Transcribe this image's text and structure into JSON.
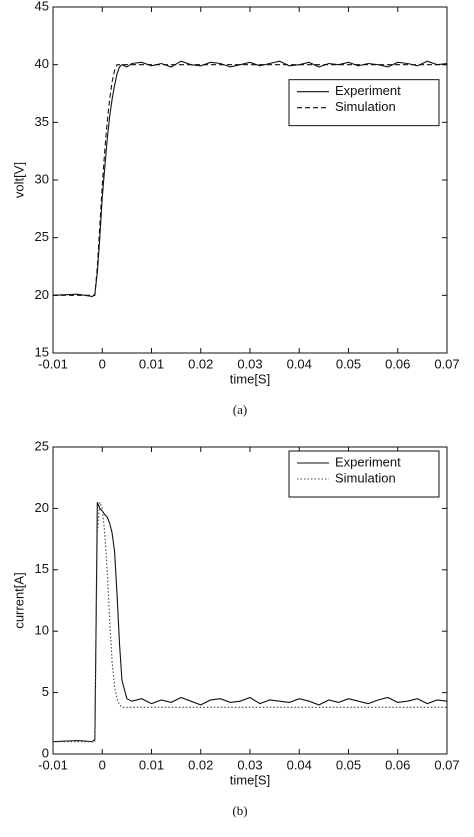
{
  "chart_data": [
    {
      "type": "line",
      "caption": "(a)",
      "xlabel": "time[S]",
      "ylabel": "volt[V]",
      "x": [
        -0.01,
        -0.005,
        -0.002,
        -0.0015,
        -0.001,
        -0.0005,
        0,
        0.0005,
        0.001,
        0.0015,
        0.002,
        0.0025,
        0.003,
        0.0035,
        0.004,
        0.005,
        0.006,
        0.008,
        0.01,
        0.012,
        0.014,
        0.016,
        0.018,
        0.02,
        0.022,
        0.024,
        0.026,
        0.028,
        0.03,
        0.032,
        0.034,
        0.036,
        0.038,
        0.04,
        0.042,
        0.044,
        0.046,
        0.048,
        0.05,
        0.052,
        0.054,
        0.056,
        0.058,
        0.06,
        0.062,
        0.064,
        0.066,
        0.068,
        0.07
      ],
      "xlim": [
        -0.01,
        0.07
      ],
      "xticks": [
        -0.01,
        0,
        0.01,
        0.02,
        0.03,
        0.04,
        0.05,
        0.06,
        0.07
      ],
      "ylim": [
        15,
        45
      ],
      "yticks": [
        15,
        20,
        25,
        30,
        35,
        40,
        45
      ],
      "legend": "right",
      "series": [
        {
          "name": "Experiment",
          "color": "#111111",
          "dash": "solid",
          "values": [
            20,
            20.1,
            19.9,
            20.1,
            22,
            25,
            28.5,
            31,
            33.5,
            35.5,
            37,
            38.2,
            39.2,
            39.8,
            40,
            39.8,
            40.1,
            40.2,
            39.9,
            40.1,
            39.8,
            40.3,
            40,
            39.9,
            40.2,
            40.1,
            39.8,
            40,
            40.2,
            39.9,
            40.1,
            40.3,
            39.9,
            40,
            40.2,
            39.8,
            40.1,
            40,
            40.2,
            39.9,
            40.1,
            40,
            39.8,
            40.2,
            40.1,
            39.9,
            40.3,
            40,
            40.1
          ]
        },
        {
          "name": "Simulation",
          "color": "#111111",
          "dash": "dashed",
          "values": [
            20,
            20,
            20,
            20,
            22.5,
            26,
            29.5,
            32.5,
            35,
            37,
            38.5,
            39.5,
            40,
            40,
            40,
            40,
            40,
            40,
            40,
            40,
            40,
            40,
            40,
            40,
            40,
            40,
            40,
            40,
            40,
            40,
            40,
            40,
            40,
            40,
            40,
            40,
            40,
            40,
            40,
            40,
            40,
            40,
            40,
            40,
            40,
            40,
            40,
            40,
            40
          ]
        }
      ]
    },
    {
      "type": "line",
      "caption": "(b)",
      "xlabel": "time[S]",
      "ylabel": "current[A]",
      "x": [
        -0.01,
        -0.005,
        -0.002,
        -0.0015,
        -0.001,
        -0.0005,
        0,
        0.0005,
        0.001,
        0.0015,
        0.002,
        0.0025,
        0.003,
        0.0035,
        0.004,
        0.005,
        0.006,
        0.008,
        0.01,
        0.012,
        0.014,
        0.016,
        0.018,
        0.02,
        0.022,
        0.024,
        0.026,
        0.028,
        0.03,
        0.032,
        0.034,
        0.036,
        0.038,
        0.04,
        0.042,
        0.044,
        0.046,
        0.048,
        0.05,
        0.052,
        0.054,
        0.056,
        0.058,
        0.06,
        0.062,
        0.064,
        0.066,
        0.068,
        0.07
      ],
      "xlim": [
        -0.01,
        0.07
      ],
      "xticks": [
        -0.01,
        0,
        0.01,
        0.02,
        0.03,
        0.04,
        0.05,
        0.06,
        0.07
      ],
      "ylim": [
        0,
        25
      ],
      "yticks": [
        0,
        5,
        10,
        15,
        20,
        25
      ],
      "legend": "upper right",
      "series": [
        {
          "name": "Experiment",
          "color": "#111111",
          "dash": "solid",
          "values": [
            1,
            1.1,
            1,
            1.2,
            20.5,
            20,
            19.8,
            19.5,
            19.3,
            18.8,
            18,
            16.5,
            13,
            9,
            6,
            4.5,
            4.3,
            4.5,
            4.1,
            4.4,
            4.2,
            4.6,
            4.3,
            4.0,
            4.4,
            4.5,
            4.2,
            4.3,
            4.6,
            4.1,
            4.4,
            4.3,
            4.2,
            4.5,
            4.3,
            4.0,
            4.4,
            4.2,
            4.5,
            4.3,
            4.1,
            4.4,
            4.6,
            4.2,
            4.3,
            4.5,
            4.1,
            4.4,
            4.3
          ]
        },
        {
          "name": "Simulation",
          "color": "#444444",
          "dash": "dotted",
          "values": [
            1,
            1,
            1,
            1,
            18,
            20.5,
            20,
            18,
            15,
            11,
            7.5,
            5.5,
            4.5,
            4,
            3.8,
            3.8,
            3.8,
            3.8,
            3.8,
            3.8,
            3.8,
            3.8,
            3.8,
            3.8,
            3.8,
            3.8,
            3.8,
            3.8,
            3.8,
            3.8,
            3.8,
            3.8,
            3.8,
            3.8,
            3.8,
            3.8,
            3.8,
            3.8,
            3.8,
            3.8,
            3.8,
            3.8,
            3.8,
            3.8,
            3.8,
            3.8,
            3.8,
            3.8,
            3.8
          ]
        }
      ]
    }
  ]
}
